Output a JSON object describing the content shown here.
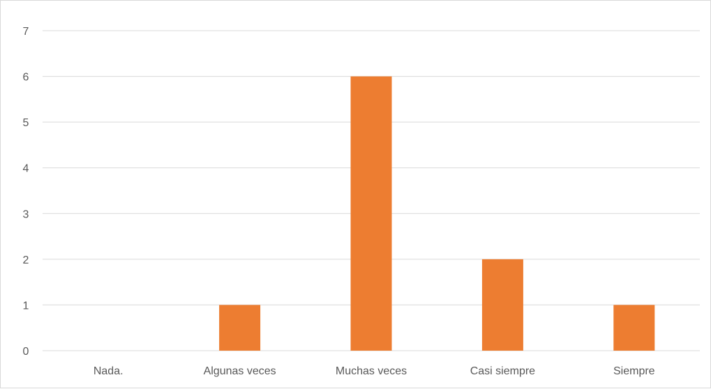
{
  "chart_data": {
    "type": "bar",
    "categories": [
      "Nada.",
      "Algunas veces",
      "Muchas veces",
      "Casi siempre",
      "Siempre"
    ],
    "values": [
      0,
      1,
      6,
      2,
      1
    ],
    "ylim": [
      0,
      7
    ],
    "yticks": [
      0,
      1,
      2,
      3,
      4,
      5,
      6,
      7
    ],
    "grid": true,
    "legend": "none",
    "colors": {
      "bar": "#ed7d31",
      "grid": "#d9d9d9",
      "tick_text": "#595959"
    }
  }
}
